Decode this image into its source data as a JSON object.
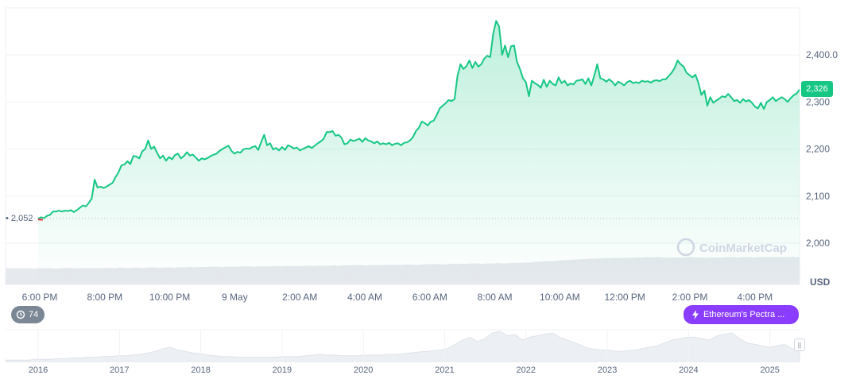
{
  "chart_data": {
    "type": "area",
    "x_ticks": [
      "6:00 PM",
      "8:00 PM",
      "10:00 PM",
      "9 May",
      "2:00 AM",
      "4:00 AM",
      "6:00 AM",
      "8:00 AM",
      "10:00 AM",
      "12:00 PM",
      "2:00 PM",
      "4:00 PM"
    ],
    "y_ticks": [
      "2,000",
      "2,100",
      "2,200",
      "2,300",
      "2,400.0"
    ],
    "ylim": [
      1985,
      2480
    ],
    "y_unit": "USD",
    "open_price": "2,052",
    "current_price": "2,326",
    "series": [
      {
        "values": [
          2052,
          2055,
          2053,
          2058,
          2060,
          2067,
          2067,
          2069,
          2067,
          2069,
          2068,
          2070,
          2066,
          2070,
          2075,
          2080,
          2078,
          2085,
          2095,
          2135,
          2118,
          2120,
          2117,
          2120,
          2124,
          2128,
          2140,
          2150,
          2165,
          2167,
          2174,
          2168,
          2185,
          2184,
          2180,
          2195,
          2200,
          2218,
          2200,
          2205,
          2192,
          2180,
          2186,
          2175,
          2183,
          2178,
          2187,
          2190,
          2180,
          2185,
          2193,
          2186,
          2188,
          2182,
          2175,
          2180,
          2178,
          2181,
          2185,
          2188,
          2190,
          2196,
          2200,
          2204,
          2207,
          2196,
          2190,
          2194,
          2192,
          2199,
          2201,
          2200,
          2204,
          2206,
          2198,
          2215,
          2230,
          2208,
          2212,
          2199,
          2202,
          2197,
          2204,
          2198,
          2208,
          2205,
          2201,
          2203,
          2197,
          2200,
          2203,
          2206,
          2202,
          2207,
          2212,
          2216,
          2222,
          2236,
          2236,
          2238,
          2228,
          2230,
          2224,
          2210,
          2212,
          2220,
          2217,
          2219,
          2222,
          2215,
          2223,
          2218,
          2216,
          2212,
          2216,
          2210,
          2212,
          2210,
          2213,
          2208,
          2211,
          2212,
          2208,
          2213,
          2214,
          2218,
          2225,
          2238,
          2245,
          2258,
          2255,
          2250,
          2258,
          2260,
          2272,
          2286,
          2292,
          2297,
          2304,
          2302,
          2306,
          2355,
          2380,
          2370,
          2376,
          2388,
          2372,
          2385,
          2375,
          2380,
          2392,
          2398,
          2395,
          2445,
          2472,
          2460,
          2400,
          2420,
          2395,
          2418,
          2420,
          2385,
          2370,
          2350,
          2342,
          2312,
          2345,
          2340,
          2336,
          2330,
          2347,
          2332,
          2345,
          2338,
          2335,
          2352,
          2340,
          2345,
          2335,
          2339,
          2337,
          2345,
          2346,
          2348,
          2338,
          2350,
          2335,
          2356,
          2380,
          2350,
          2348,
          2343,
          2348,
          2343,
          2335,
          2343,
          2340,
          2335,
          2342,
          2345,
          2340,
          2342,
          2340,
          2345,
          2343,
          2344,
          2341,
          2345,
          2346,
          2344,
          2348,
          2348,
          2355,
          2362,
          2372,
          2388,
          2380,
          2375,
          2362,
          2357,
          2352,
          2358,
          2340,
          2315,
          2324,
          2292,
          2310,
          2298,
          2303,
          2307,
          2312,
          2310,
          2317,
          2310,
          2302,
          2304,
          2298,
          2306,
          2301,
          2304,
          2298,
          2290,
          2286,
          2298,
          2285,
          2300,
          2304,
          2310,
          2302,
          2306,
          2310,
          2306,
          2300,
          2308,
          2314,
          2318,
          2326
        ]
      }
    ],
    "area_volume": [
      56,
      56,
      56,
      56,
      56,
      55,
      56,
      56,
      56,
      55,
      56,
      57,
      56,
      56,
      56,
      57,
      56,
      56,
      57,
      57,
      56,
      58,
      57,
      57,
      58,
      57,
      58,
      59,
      58,
      58,
      59,
      58,
      59,
      59,
      60,
      59,
      60,
      60,
      61,
      61,
      60,
      61,
      61,
      61,
      62,
      62,
      61,
      62,
      62,
      62,
      63,
      62,
      63,
      63,
      63,
      63,
      64,
      63,
      64,
      64,
      64,
      65,
      64,
      65,
      65,
      66,
      66,
      65,
      66,
      66,
      66,
      67,
      66,
      67,
      67,
      68,
      67,
      67,
      68,
      69,
      69,
      69,
      68,
      70,
      69,
      70,
      70,
      71,
      71,
      70,
      71,
      71,
      72,
      71,
      72,
      73,
      73,
      74,
      74,
      76,
      77,
      78,
      78,
      80,
      81,
      82,
      83,
      84,
      85,
      86,
      86,
      87,
      88,
      88,
      89,
      88,
      89,
      89,
      90,
      90,
      91,
      90,
      91,
      90,
      89,
      90,
      90,
      90,
      91,
      90,
      90,
      89,
      90,
      90,
      90,
      91,
      91,
      90,
      91,
      91,
      90,
      91,
      91,
      91,
      91,
      91,
      91,
      92,
      91
    ],
    "history_x_ticks": [
      "2016",
      "2017",
      "2018",
      "2019",
      "2020",
      "2021",
      "2022",
      "2023",
      "2024",
      "2025"
    ],
    "watermark": "CoinMarketCap",
    "event_count": "74",
    "event_label": "Ethereum's Pectra ...",
    "colors": {
      "line": "#16c784",
      "fill_top": "#16c784",
      "open_dot": "#ea3943",
      "event": "#8b3dff"
    }
  },
  "history": [
    2,
    2,
    2,
    2,
    3,
    3,
    3,
    4,
    4,
    5,
    5,
    6,
    6,
    7,
    7,
    8,
    8,
    9,
    10,
    12,
    14,
    18,
    20,
    16,
    14,
    12,
    11,
    9,
    8,
    7,
    7,
    6,
    6,
    6,
    6,
    6,
    6,
    7,
    7,
    7,
    8,
    9,
    10,
    9,
    9,
    8,
    8,
    8,
    9,
    9,
    9,
    10,
    10,
    11,
    12,
    13,
    14,
    15,
    16,
    18,
    24,
    30,
    34,
    28,
    32,
    40,
    42,
    36,
    38,
    30,
    34,
    36,
    38,
    40,
    34,
    30,
    26,
    22,
    18,
    17,
    16,
    15,
    14,
    15,
    16,
    18,
    20,
    22,
    26,
    30,
    32,
    34,
    34,
    32,
    30,
    36,
    38,
    40,
    32,
    26,
    24,
    22,
    20,
    22,
    24,
    18,
    16
  ]
}
